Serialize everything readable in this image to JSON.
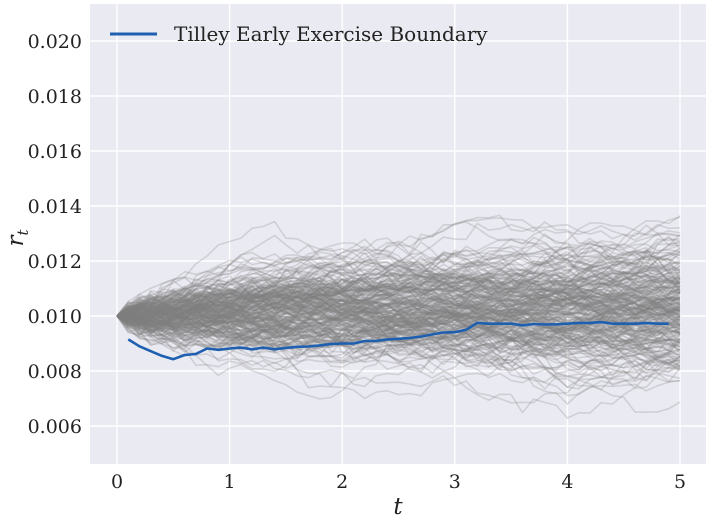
{
  "chart_data": {
    "type": "line",
    "title": "",
    "xlabel": "t",
    "ylabel_main": "r",
    "ylabel_sub": "t",
    "xlim": [
      -0.25,
      5.25
    ],
    "ylim": [
      0.0045,
      0.0213
    ],
    "x_ticks": [
      0,
      1,
      2,
      3,
      4,
      5
    ],
    "x_tick_labels": [
      "0",
      "1",
      "2",
      "3",
      "4",
      "5"
    ],
    "y_ticks": [
      0.006,
      0.008,
      0.01,
      0.012,
      0.014,
      0.016,
      0.018,
      0.02
    ],
    "y_tick_labels": [
      "0.006",
      "0.008",
      "0.010",
      "0.012",
      "0.014",
      "0.016",
      "0.018",
      "0.020"
    ],
    "grid": true,
    "legend_position": "top-left",
    "background_color": "#eaeaf2",
    "grid_color": "#ffffff",
    "simulated_paths": {
      "description_style": "many semi-transparent gray simulated short-rate paths starting at 0.010",
      "start_value": 0.01,
      "color": "#808080",
      "opacity": 0.25,
      "t_end": 5,
      "steps": 50
    },
    "series": [
      {
        "name": "Tilley Early Exercise Boundary",
        "color": "#1f5fb0",
        "x": [
          0.1,
          0.2,
          0.3,
          0.4,
          0.5,
          0.6,
          0.7,
          0.8,
          0.9,
          1.0,
          1.1,
          1.2,
          1.3,
          1.4,
          1.5,
          1.6,
          1.7,
          1.8,
          1.9,
          2.0,
          2.1,
          2.2,
          2.3,
          2.4,
          2.5,
          2.6,
          2.7,
          2.8,
          2.9,
          3.0,
          3.1,
          3.2,
          3.3,
          3.4,
          3.5,
          3.6,
          3.7,
          3.8,
          3.9,
          4.0,
          4.1,
          4.2,
          4.3,
          4.4,
          4.5,
          4.6,
          4.7,
          4.8,
          4.9
        ],
        "values": [
          0.00915,
          0.0089,
          0.00872,
          0.00855,
          0.00843,
          0.00858,
          0.00862,
          0.00882,
          0.00877,
          0.00882,
          0.00885,
          0.00879,
          0.00885,
          0.00879,
          0.00884,
          0.00888,
          0.00889,
          0.00893,
          0.00898,
          0.009,
          0.009,
          0.00909,
          0.00909,
          0.00915,
          0.00917,
          0.0092,
          0.00925,
          0.00933,
          0.0094,
          0.00941,
          0.0095,
          0.00975,
          0.00972,
          0.00972,
          0.00972,
          0.00966,
          0.00971,
          0.00969,
          0.0097,
          0.00972,
          0.00975,
          0.00975,
          0.00978,
          0.00972,
          0.00972,
          0.00972,
          0.00974,
          0.00972,
          0.00972
        ]
      }
    ]
  }
}
